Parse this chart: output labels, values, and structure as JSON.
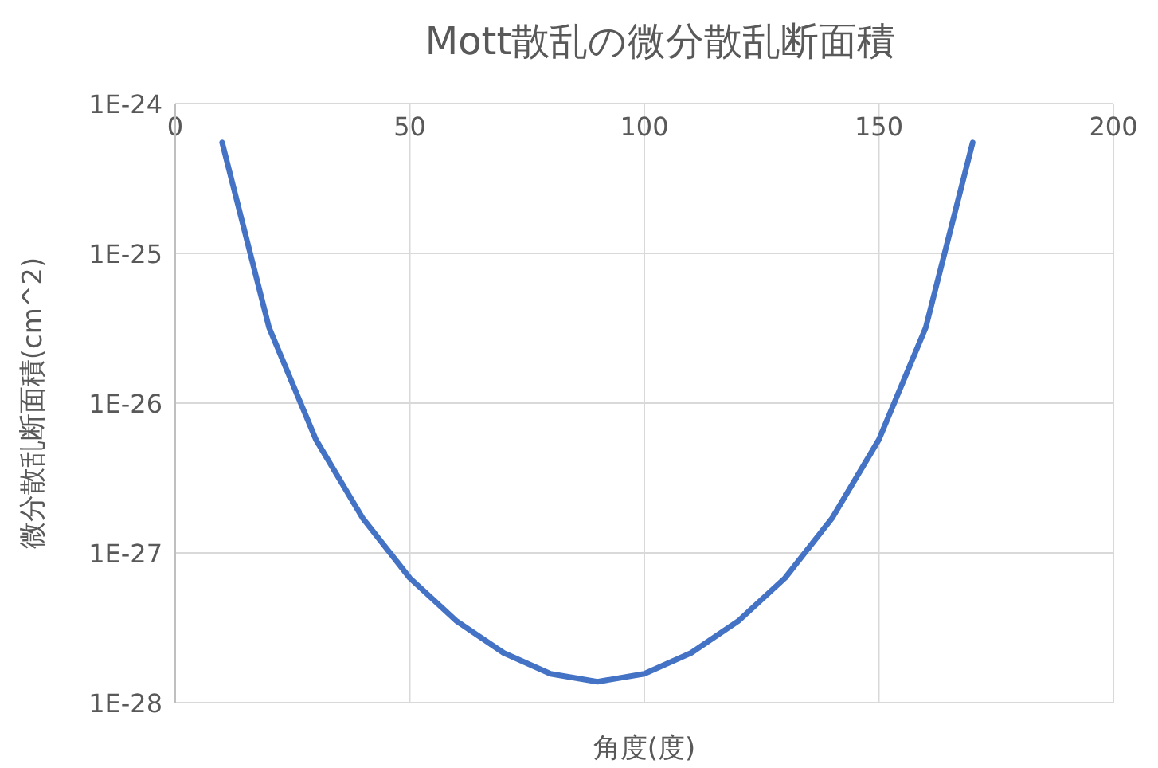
{
  "chart_data": {
    "type": "line",
    "title": "Mott散乱の微分散乱断面積",
    "xlabel": "角度(度)",
    "ylabel": "微分散乱断面積(cm^2)",
    "x": [
      10,
      20,
      30,
      40,
      50,
      60,
      70,
      80,
      90,
      100,
      110,
      120,
      130,
      140,
      150,
      160,
      170
    ],
    "series": [
      {
        "color": "#4472c4",
        "values": [
          5.5e-25,
          3.2e-26,
          5.7e-27,
          1.7e-27,
          6.8e-28,
          3.5e-28,
          2.15e-28,
          1.56e-28,
          1.38e-28,
          1.56e-28,
          2.15e-28,
          3.5e-28,
          6.8e-28,
          1.7e-27,
          5.7e-27,
          3.2e-26,
          5.5e-25
        ]
      }
    ],
    "xlim": [
      0,
      200
    ],
    "xticks": [
      0,
      50,
      100,
      150,
      200
    ],
    "ylim": [
      1e-28,
      1e-24
    ],
    "yticks": [
      {
        "value": 1e-28,
        "label": "1E-28"
      },
      {
        "value": 1e-27,
        "label": "1E-27"
      },
      {
        "value": 1e-26,
        "label": "1E-26"
      },
      {
        "value": 1e-25,
        "label": "1E-25"
      },
      {
        "value": 1e-24,
        "label": "1E-24"
      }
    ],
    "log": true,
    "grid": true,
    "marker": "none",
    "line_style": "solid"
  }
}
